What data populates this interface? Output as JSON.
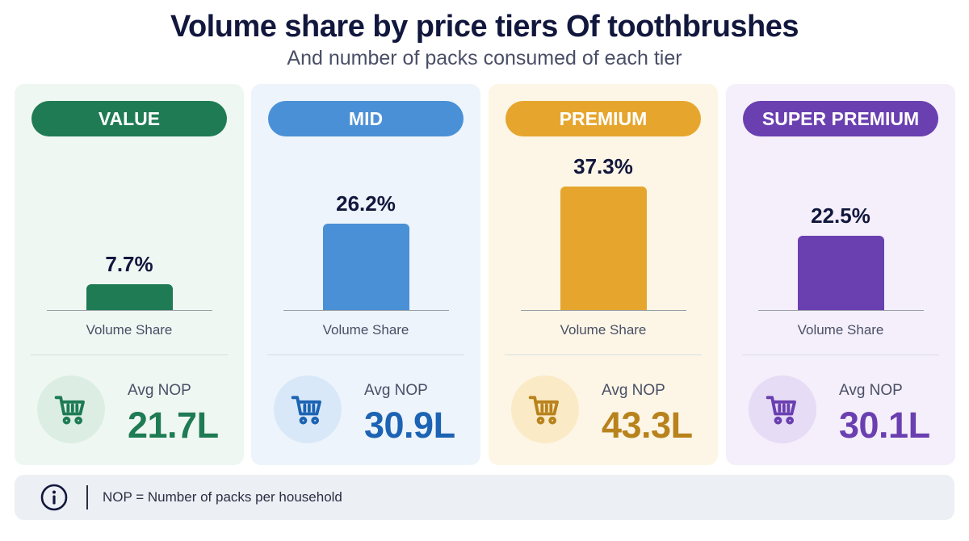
{
  "header": {
    "title": "Volume share by price tiers Of toothbrushes",
    "subtitle": "And number of packs consumed of each tier"
  },
  "chart_data": {
    "type": "bar",
    "categories": [
      "VALUE",
      "MID",
      "PREMIUM",
      "SUPER PREMIUM"
    ],
    "values": [
      7.7,
      26.2,
      37.3,
      22.5
    ],
    "value_labels": [
      "7.7%",
      "26.2%",
      "37.3%",
      "22.5%"
    ],
    "unit": "%",
    "xlabel": "Volume Share",
    "avg_nop": {
      "label": "Avg NOP",
      "values": [
        21.7,
        30.9,
        43.3,
        30.1
      ],
      "value_labels": [
        "21.7L",
        "30.9L",
        "43.3L",
        "30.1L"
      ]
    }
  },
  "tiers": [
    {
      "name": "VALUE",
      "pct": "7.7%",
      "value": 7.7,
      "share_label": "Volume Share",
      "nop_label": "Avg NOP",
      "nop_value": "21.7L",
      "color": "#1e7b54",
      "card_bg": "#eff7f2",
      "icon_bg": "#dceee4",
      "icon": "shopping-cart-icon"
    },
    {
      "name": "MID",
      "pct": "26.2%",
      "value": 26.2,
      "share_label": "Volume Share",
      "nop_label": "Avg NOP",
      "nop_value": "30.9L",
      "color": "#4a90d6",
      "value_color": "#1c63b3",
      "card_bg": "#edf4fb",
      "icon_bg": "#d9e8f8",
      "icon": "shopping-cart-icon"
    },
    {
      "name": "PREMIUM",
      "pct": "37.3%",
      "value": 37.3,
      "share_label": "Volume Share",
      "nop_label": "Avg NOP",
      "nop_value": "43.3L",
      "color": "#e6a62e",
      "value_color": "#b8821c",
      "card_bg": "#fdf6e6",
      "icon_bg": "#fbeac6",
      "icon": "shopping-cart-icon"
    },
    {
      "name": "SUPER PREMIUM",
      "pct": "22.5%",
      "value": 22.5,
      "share_label": "Volume Share",
      "nop_label": "Avg NOP",
      "nop_value": "30.1L",
      "color": "#6a3fb0",
      "card_bg": "#f4effa",
      "icon_bg": "#e6dcf5",
      "icon": "shopping-cart-icon"
    }
  ],
  "footer": {
    "icon": "info-icon",
    "note": "NOP = Number of packs per household"
  }
}
